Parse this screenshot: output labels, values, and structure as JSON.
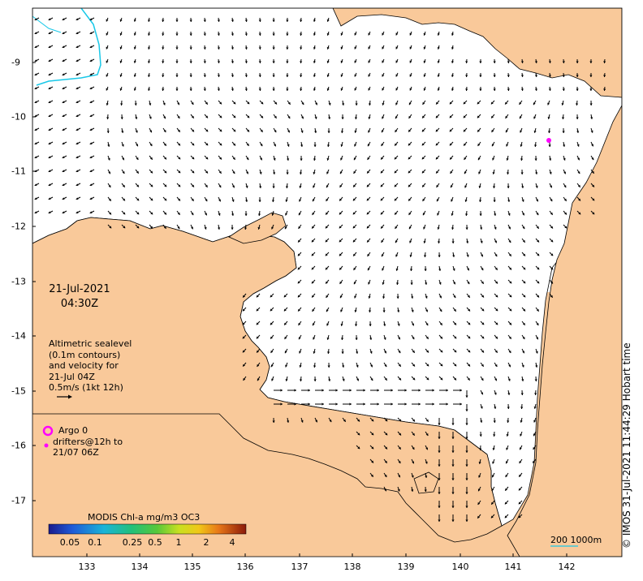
{
  "map": {
    "date": "21-Jul-2021",
    "time": "04:30Z",
    "lon_ticks": [
      "133",
      "134",
      "135",
      "136",
      "137",
      "138",
      "139",
      "140",
      "141",
      "142"
    ],
    "lat_ticks": [
      "-9",
      "-10",
      "-11",
      "-12",
      "-13",
      "-14",
      "-15",
      "-16",
      "-17"
    ],
    "legend_lines": [
      "Altimetric sealevel",
      "(0.1m contours)",
      "and velocity for",
      "21-Jul 04Z",
      "0.5m/s (1kt 12h)"
    ],
    "argo_label": "Argo 0",
    "drifter_lines": [
      "drifters@12h to",
      "21/07 06Z"
    ],
    "colorbar_title": "MODIS Chl-a mg/m3 OC3",
    "colorbar_ticks": [
      "0.05",
      "0.1",
      "0.25",
      "0.5",
      "1",
      "2",
      "4"
    ],
    "scale_label": "200  1000m",
    "credit": "© IMOS 31-Jul-2021 11:44:29 Hobart time",
    "colors": {
      "land": "#f9c99a",
      "ocean": "#ffffff",
      "chl_green": "#3cb84a",
      "chl_yellow": "#c8e020",
      "chl_orange": "#e88a1a",
      "argo": "#ff00ff",
      "cyan_line": "#18c8e8"
    }
  }
}
